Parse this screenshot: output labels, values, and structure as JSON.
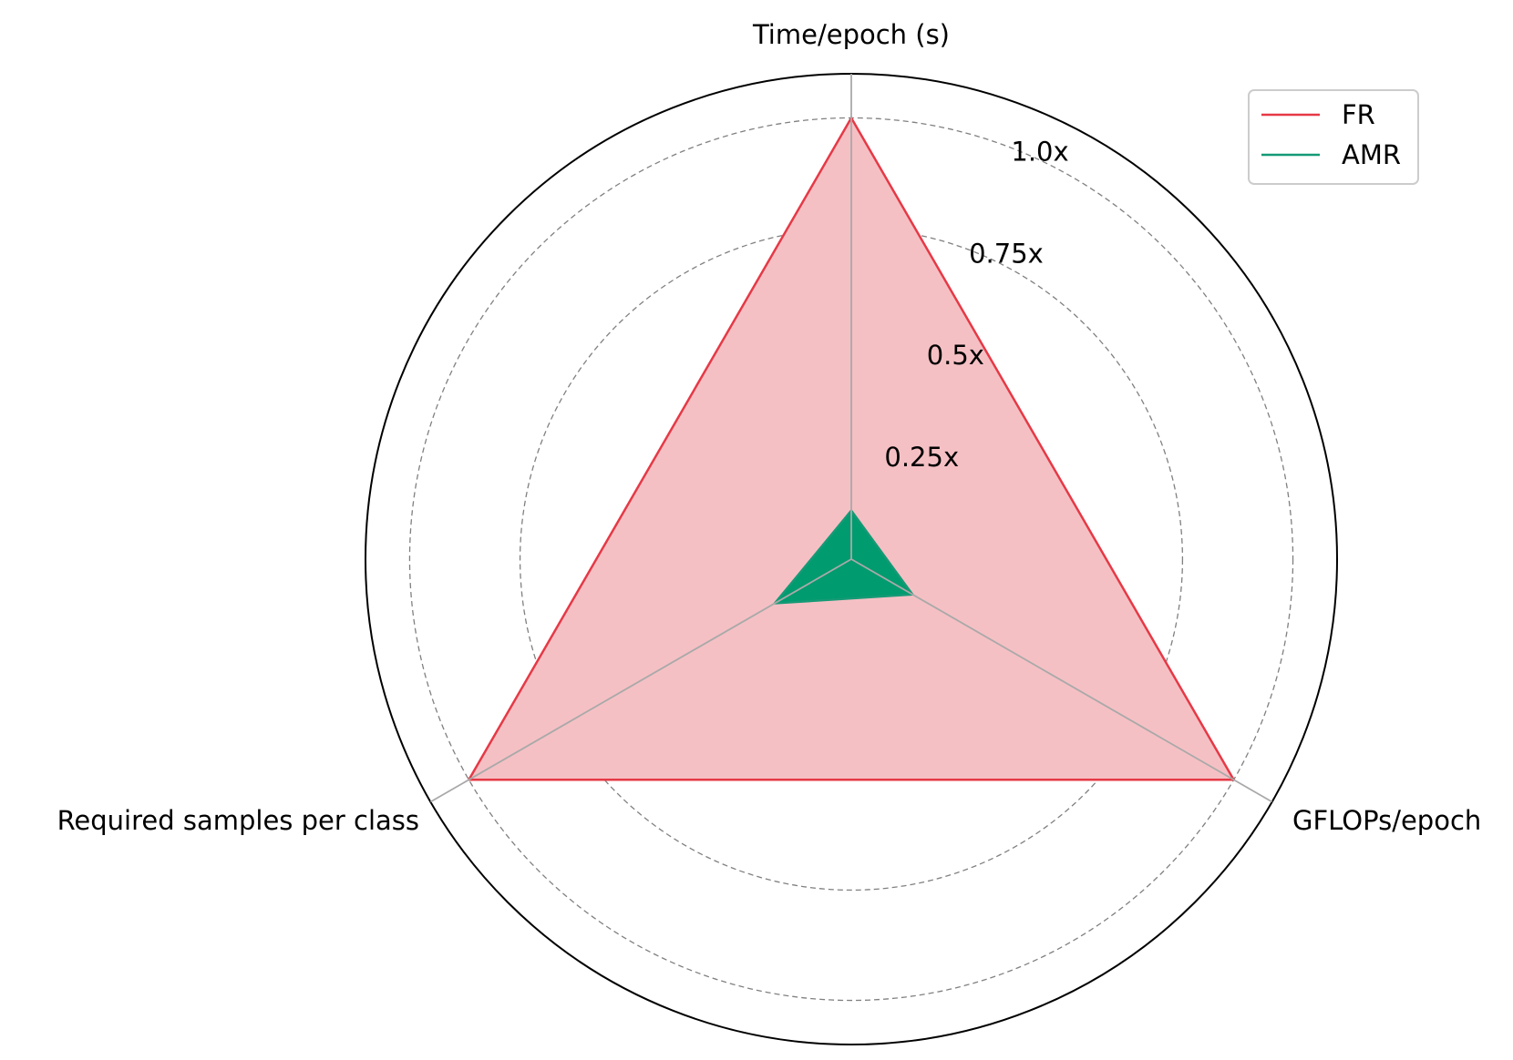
{
  "chart_data": {
    "type": "radar",
    "axes": [
      "Time/epoch (s)",
      "GFLOPs/epoch",
      "Required samples per class"
    ],
    "rlim": [
      0,
      1.1
    ],
    "rticks": [
      0.25,
      0.5,
      0.75,
      1.0
    ],
    "rtick_labels": [
      "0.25x",
      "0.5x",
      "0.75x",
      "1.0x"
    ],
    "grid": true,
    "legend_position": "top-right",
    "series": [
      {
        "name": "FR",
        "values": [
          1.0,
          1.0,
          1.0
        ],
        "color": "#e63946",
        "fill": "#f5c0c4"
      },
      {
        "name": "AMR",
        "values": [
          0.11,
          0.16,
          0.2
        ],
        "color": "#149a76",
        "fill": "#009b6e"
      }
    ]
  }
}
